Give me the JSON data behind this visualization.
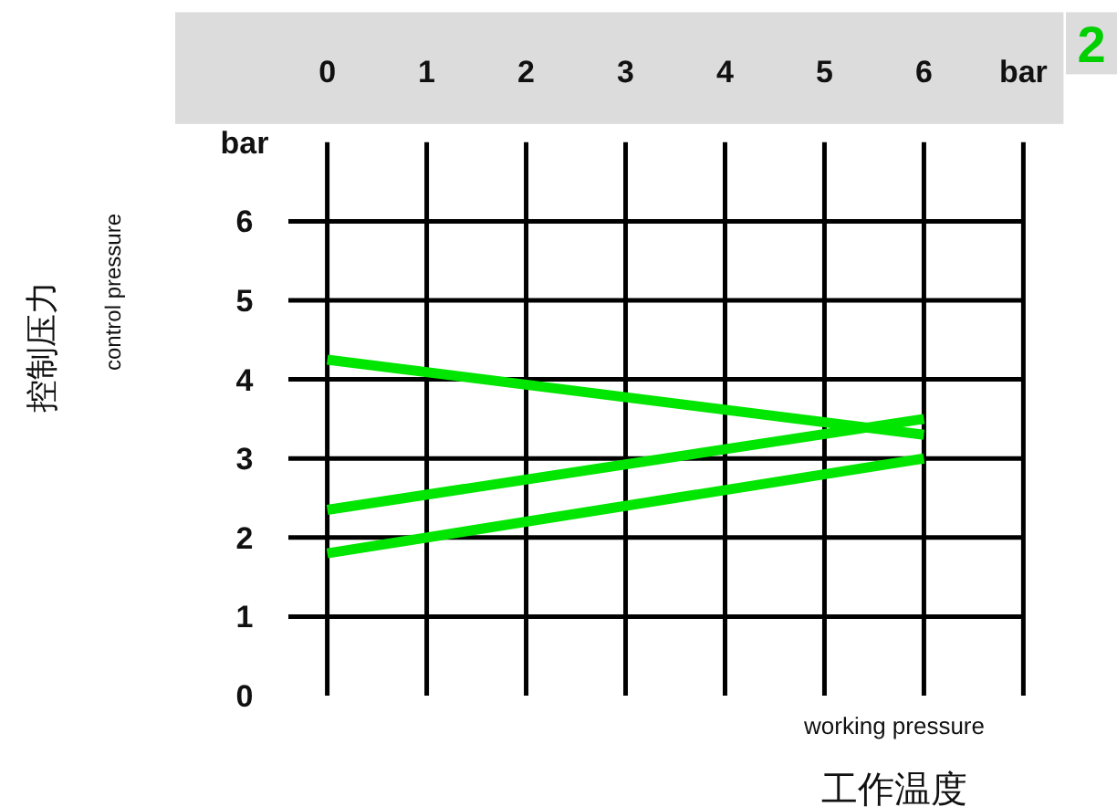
{
  "chart_data": {
    "type": "line",
    "xlabel": "工作温度",
    "ylabel": "控制压力",
    "annotations": [
      "working pressure",
      "control pressure",
      "2"
    ],
    "x": [
      0,
      6
    ],
    "series": [
      {
        "color": "#00e600",
        "values": [
          4.25,
          3.3
        ]
      },
      {
        "color": "#00e600",
        "values": [
          2.35,
          3.5
        ]
      },
      {
        "color": "#00e600",
        "values": [
          1.8,
          3.0
        ]
      }
    ],
    "xlim": [
      0,
      7
    ],
    "ylim": [
      0,
      7
    ],
    "xticks": [
      0,
      1,
      2,
      3,
      4,
      5,
      6,
      {
        "value": 7,
        "label": "bar"
      }
    ],
    "yticks": [
      0,
      1,
      2,
      3,
      4,
      5,
      6,
      {
        "value": 7,
        "label": "bar"
      }
    ],
    "grid": true
  }
}
